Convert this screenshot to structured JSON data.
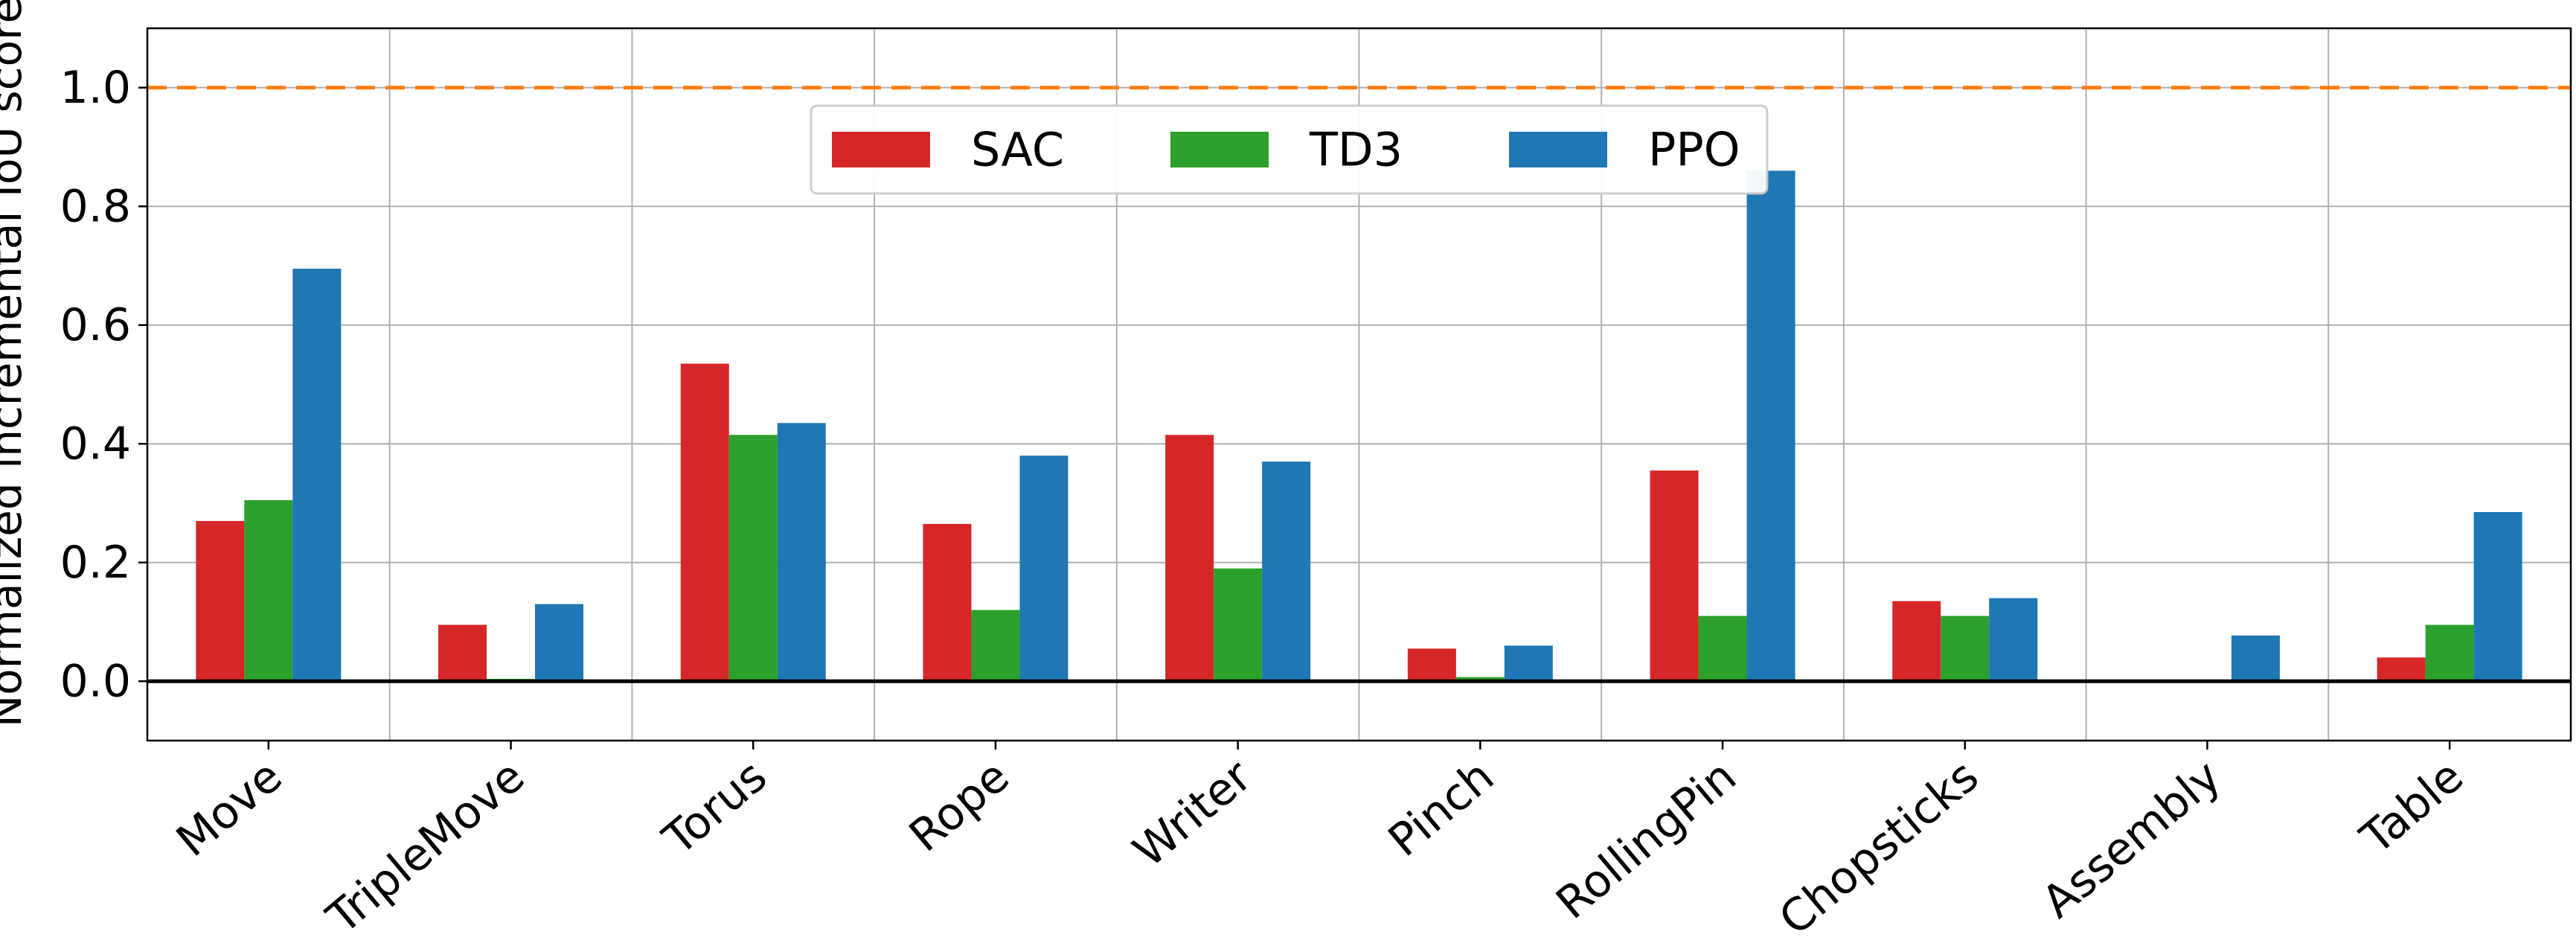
{
  "chart_data": {
    "type": "bar",
    "title": "",
    "xlabel": "",
    "ylabel": "Normalized incremental IoU score",
    "categories": [
      "Move",
      "TripleMove",
      "Torus",
      "Rope",
      "Writer",
      "Pinch",
      "RollingPin",
      "Chopsticks",
      "Assembly",
      "Table"
    ],
    "series": [
      {
        "name": "SAC",
        "color": "#d62728",
        "values": [
          0.27,
          0.095,
          0.535,
          0.265,
          0.415,
          0.055,
          0.355,
          0.135,
          0.0,
          0.04
        ]
      },
      {
        "name": "TD3",
        "color": "#2ca02c",
        "values": [
          0.305,
          0.004,
          0.415,
          0.12,
          0.19,
          0.007,
          0.11,
          0.11,
          0.0,
          0.095
        ]
      },
      {
        "name": "PPO",
        "color": "#1f77b4",
        "values": [
          0.695,
          0.13,
          0.435,
          0.38,
          0.37,
          0.06,
          0.86,
          0.14,
          0.077,
          0.285
        ]
      }
    ],
    "ylim": [
      -0.1,
      1.1
    ],
    "yticks": [
      0.0,
      0.2,
      0.4,
      0.6,
      0.8,
      1.0
    ],
    "ytick_labels": [
      "0.0",
      "0.2",
      "0.4",
      "0.6",
      "0.8",
      "1.0"
    ],
    "reference_line": {
      "value": 1.0,
      "color": "#ff7f0e",
      "style": "dashed"
    },
    "zero_line": true,
    "grid": true,
    "legend": {
      "placement": "top-center",
      "columns": 3
    }
  }
}
